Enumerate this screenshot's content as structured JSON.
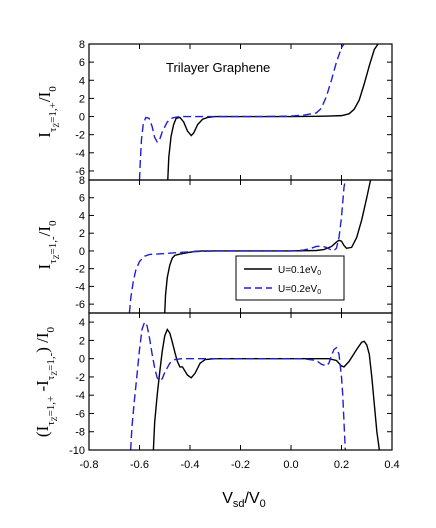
{
  "colors": {
    "black": "#000000",
    "blue": "#1f1fd6"
  },
  "chart_data": [
    {
      "type": "line",
      "panel": "top",
      "annotation": "Trilayer Graphene",
      "ylabel": "I_{τz=1,+}/I_0",
      "ylim": [
        -7,
        8
      ],
      "yticks": [
        8,
        6,
        4,
        2,
        0,
        -2,
        -4,
        -6
      ],
      "xlim": [
        -0.8,
        0.4
      ],
      "series": [
        {
          "key": "U01",
          "color": "#000000",
          "dash": false,
          "x": [
            -0.488,
            -0.484,
            -0.475,
            -0.465,
            -0.455,
            -0.44,
            -0.425,
            -0.41,
            -0.395,
            -0.385,
            -0.37,
            -0.35,
            -0.33,
            -0.3,
            -0.25,
            -0.2,
            -0.1,
            0.0,
            0.1,
            0.15,
            0.2,
            0.23,
            0.25,
            0.27,
            0.29,
            0.31,
            0.33,
            0.345
          ],
          "y": [
            -7,
            -4.5,
            -2.2,
            -0.9,
            -0.2,
            -0.1,
            -0.6,
            -1.6,
            -2.1,
            -1.8,
            -0.9,
            -0.3,
            -0.1,
            0,
            0,
            0,
            0,
            0,
            0.02,
            0.05,
            0.1,
            0.3,
            0.8,
            1.8,
            3.6,
            5.6,
            7.4,
            8
          ]
        },
        {
          "key": "U02",
          "color": "#1f1fd6",
          "dash": true,
          "x": [
            -0.6,
            -0.597,
            -0.592,
            -0.585,
            -0.575,
            -0.562,
            -0.55,
            -0.54,
            -0.53,
            -0.522,
            -0.51,
            -0.49,
            -0.47,
            -0.45,
            -0.43,
            -0.4,
            -0.3,
            -0.2,
            -0.1,
            0.0,
            0.05,
            0.1,
            0.12,
            0.14,
            0.16,
            0.18,
            0.2,
            0.21
          ],
          "y": [
            -7,
            -5,
            -2.5,
            -0.8,
            -0.1,
            -0.2,
            -1.1,
            -2.3,
            -2.8,
            -2.7,
            -1.7,
            -0.6,
            -0.15,
            -0.05,
            0,
            0,
            0,
            0,
            0,
            0.05,
            0.15,
            0.4,
            0.9,
            2.2,
            4.0,
            6.0,
            7.6,
            8
          ]
        }
      ]
    },
    {
      "type": "line",
      "panel": "middle",
      "ylabel": "I_{τz=1,-}/I_0",
      "ylim": [
        -7,
        8
      ],
      "yticks": [
        8,
        6,
        4,
        2,
        0,
        -2,
        -4,
        -6
      ],
      "xlim": [
        -0.8,
        0.4
      ],
      "legend": {
        "placement": "right",
        "entries": [
          {
            "key": "U01",
            "label": "U=0.1eV0"
          },
          {
            "key": "U02",
            "label": "U=0.2eV0"
          }
        ]
      },
      "series": [
        {
          "key": "U01",
          "color": "#000000",
          "dash": false,
          "x": [
            -0.5,
            -0.497,
            -0.49,
            -0.48,
            -0.47,
            -0.46,
            -0.44,
            -0.41,
            -0.38,
            -0.35,
            -0.3,
            -0.2,
            -0.1,
            0.0,
            0.1,
            0.13,
            0.16,
            0.18,
            0.19,
            0.2,
            0.21,
            0.22,
            0.24,
            0.26,
            0.28,
            0.3,
            0.315
          ],
          "y": [
            -7,
            -5,
            -3,
            -1.6,
            -0.8,
            -0.5,
            -0.35,
            -0.2,
            -0.05,
            0,
            0,
            0,
            0,
            0,
            0.05,
            0.15,
            0.5,
            1.0,
            1.2,
            1.1,
            0.6,
            0.3,
            0.4,
            1.5,
            3.5,
            6.0,
            8
          ]
        },
        {
          "key": "U02",
          "color": "#1f1fd6",
          "dash": true,
          "x": [
            -0.64,
            -0.634,
            -0.625,
            -0.615,
            -0.6,
            -0.58,
            -0.56,
            -0.53,
            -0.48,
            -0.4,
            -0.3,
            -0.2,
            -0.1,
            0.0,
            0.05,
            0.08,
            0.1,
            0.12,
            0.14,
            0.16,
            0.17,
            0.18,
            0.19,
            0.2,
            0.205,
            0.21,
            0.215
          ],
          "y": [
            -7,
            -5.2,
            -3.5,
            -2.2,
            -1.2,
            -0.6,
            -0.4,
            -0.35,
            -0.25,
            -0.1,
            0,
            0,
            0,
            0,
            0.1,
            0.3,
            0.5,
            0.55,
            0.4,
            0.1,
            0.05,
            0.3,
            1.5,
            3.8,
            5.5,
            7.2,
            8
          ]
        }
      ]
    },
    {
      "type": "line",
      "panel": "bottom",
      "ylabel": "(I_{τz=1,+} - I_{τz=1,-}) / I_0",
      "xlabel": "V_sd/V_0",
      "ylim": [
        -10,
        5
      ],
      "yticks": [
        4,
        2,
        0,
        -2,
        -4,
        -6,
        -8,
        -10
      ],
      "xlim": [
        -0.8,
        0.4
      ],
      "xticks": [
        -0.8,
        -0.6,
        -0.4,
        -0.2,
        0.0,
        0.2,
        0.4
      ],
      "xticklabels": [
        "-0.8",
        "-0.6",
        "-0.4",
        "-0.2",
        "0.0",
        "0.2",
        "0.4"
      ],
      "series": [
        {
          "key": "U01",
          "color": "#000000",
          "dash": false,
          "x": [
            -0.545,
            -0.54,
            -0.53,
            -0.52,
            -0.51,
            -0.5,
            -0.49,
            -0.48,
            -0.47,
            -0.46,
            -0.45,
            -0.44,
            -0.43,
            -0.41,
            -0.395,
            -0.38,
            -0.36,
            -0.34,
            -0.3,
            -0.2,
            -0.1,
            0.0,
            0.1,
            0.15,
            0.18,
            0.2,
            0.21,
            0.23,
            0.26,
            0.28,
            0.29,
            0.3,
            0.31,
            0.32,
            0.33,
            0.34,
            0.35
          ],
          "y": [
            -10,
            -7,
            -4,
            -1.5,
            0.8,
            2.5,
            3.2,
            2.8,
            1.8,
            0.7,
            -0.3,
            -0.9,
            -0.9,
            -1.8,
            -2.1,
            -1.6,
            -0.5,
            -0.1,
            0,
            0,
            0,
            0,
            0,
            0,
            -0.2,
            -0.8,
            -0.9,
            -0.3,
            1.0,
            1.8,
            1.9,
            1.5,
            0.5,
            -2.0,
            -5.0,
            -8.0,
            -10
          ]
        },
        {
          "key": "U02",
          "color": "#1f1fd6",
          "dash": true,
          "x": [
            -0.635,
            -0.63,
            -0.62,
            -0.61,
            -0.6,
            -0.59,
            -0.58,
            -0.57,
            -0.56,
            -0.55,
            -0.54,
            -0.53,
            -0.52,
            -0.51,
            -0.5,
            -0.48,
            -0.46,
            -0.43,
            -0.4,
            -0.3,
            -0.2,
            -0.1,
            0.0,
            0.05,
            0.1,
            0.12,
            0.14,
            0.15,
            0.16,
            0.17,
            0.18,
            0.19,
            0.2,
            0.205,
            0.21,
            0.215
          ],
          "y": [
            -10,
            -7.5,
            -4.5,
            -1.8,
            1.0,
            3.2,
            4.0,
            3.6,
            2.2,
            0.5,
            -1.0,
            -2.1,
            -2.4,
            -2.2,
            -1.5,
            -0.5,
            -0.1,
            0,
            0,
            0,
            0,
            0,
            0,
            0,
            -0.2,
            -0.6,
            -0.8,
            -0.5,
            0.3,
            1.0,
            1.2,
            0.5,
            -2.0,
            -4.0,
            -7.0,
            -10
          ]
        }
      ]
    }
  ]
}
